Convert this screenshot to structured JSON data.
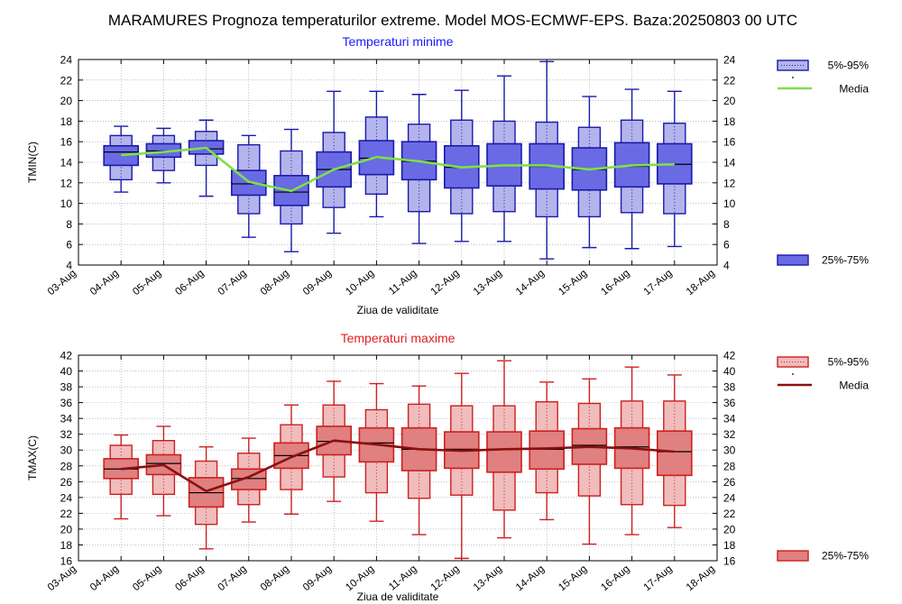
{
  "page_title": "MARAMURES  Prognoza temperaturilor extreme.  Model MOS-ECMWF-EPS. Baza:20250803 00 UTC",
  "chart_data": [
    {
      "type": "box",
      "title": "Temperaturi minime",
      "ylabel": "TMIN(C)",
      "xlabel": "Ziua de validitate",
      "x_ticks": [
        "03-Aug",
        "04-Aug",
        "05-Aug",
        "06-Aug",
        "07-Aug",
        "08-Aug",
        "09-Aug",
        "10-Aug",
        "11-Aug",
        "12-Aug",
        "13-Aug",
        "14-Aug",
        "15-Aug",
        "16-Aug",
        "17-Aug",
        "18-Aug"
      ],
      "ylim": [
        4,
        24
      ],
      "y_ticks": [
        4,
        6,
        8,
        10,
        12,
        14,
        16,
        18,
        20,
        22,
        24
      ],
      "grid": true,
      "colors": {
        "title": "#1a1aff",
        "band_5_95": "#b4b4ec",
        "band_25_75": "#6a6ae4",
        "stroke": "#1a1aaa",
        "mean_line": "#7ce04a"
      },
      "legend": {
        "outer": "5%-95%",
        "mean": "Media",
        "inner": "25%-75%"
      },
      "categories": [
        "04-Aug",
        "05-Aug",
        "06-Aug",
        "07-Aug",
        "08-Aug",
        "09-Aug",
        "10-Aug",
        "11-Aug",
        "12-Aug",
        "13-Aug",
        "14-Aug",
        "15-Aug",
        "16-Aug",
        "17-Aug"
      ],
      "boxes": [
        {
          "min": 11.1,
          "p5": 12.3,
          "p25": 13.7,
          "median": 15.0,
          "p75": 15.6,
          "p95": 16.6,
          "max": 17.5
        },
        {
          "min": 12.0,
          "p5": 13.2,
          "p25": 14.5,
          "median": 15.1,
          "p75": 15.8,
          "p95": 16.6,
          "max": 17.3
        },
        {
          "min": 10.7,
          "p5": 13.7,
          "p25": 14.8,
          "median": 15.3,
          "p75": 16.1,
          "p95": 17.0,
          "max": 18.1
        },
        {
          "min": 6.7,
          "p5": 9.0,
          "p25": 10.8,
          "median": 11.9,
          "p75": 13.2,
          "p95": 15.7,
          "max": 16.6
        },
        {
          "min": 5.3,
          "p5": 8.0,
          "p25": 9.8,
          "median": 11.1,
          "p75": 12.7,
          "p95": 15.1,
          "max": 17.2
        },
        {
          "min": 7.1,
          "p5": 9.6,
          "p25": 11.6,
          "median": 13.3,
          "p75": 15.0,
          "p95": 16.9,
          "max": 20.9
        },
        {
          "min": 8.7,
          "p5": 10.9,
          "p25": 12.8,
          "median": 14.4,
          "p75": 16.1,
          "p95": 18.4,
          "max": 20.9
        },
        {
          "min": 6.1,
          "p5": 9.2,
          "p25": 12.3,
          "median": 14.1,
          "p75": 16.0,
          "p95": 17.7,
          "max": 20.6
        },
        {
          "min": 6.3,
          "p5": 9.0,
          "p25": 11.5,
          "median": 13.5,
          "p75": 15.6,
          "p95": 18.1,
          "max": 21.0
        },
        {
          "min": 6.3,
          "p5": 9.2,
          "p25": 11.7,
          "median": 13.7,
          "p75": 15.8,
          "p95": 18.0,
          "max": 22.4
        },
        {
          "min": 4.6,
          "p5": 8.7,
          "p25": 11.4,
          "median": 13.6,
          "p75": 15.8,
          "p95": 17.9,
          "max": 23.8
        },
        {
          "min": 5.7,
          "p5": 8.7,
          "p25": 11.3,
          "median": 13.3,
          "p75": 15.4,
          "p95": 17.4,
          "max": 20.4
        },
        {
          "min": 5.6,
          "p5": 9.1,
          "p25": 11.6,
          "median": 13.6,
          "p75": 15.9,
          "p95": 18.1,
          "max": 21.1
        },
        {
          "min": 5.8,
          "p5": 9.0,
          "p25": 11.9,
          "median": 13.8,
          "p75": 15.8,
          "p95": 17.8,
          "max": 20.9
        }
      ],
      "mean": [
        14.7,
        15.0,
        15.4,
        12.1,
        11.2,
        13.3,
        14.5,
        14.1,
        13.5,
        13.7,
        13.7,
        13.3,
        13.7,
        13.8
      ]
    },
    {
      "type": "box",
      "title": "Temperaturi maxime",
      "ylabel": "TMAX(C)",
      "xlabel": "Ziua de validitate",
      "x_ticks": [
        "03-Aug",
        "04-Aug",
        "05-Aug",
        "06-Aug",
        "07-Aug",
        "08-Aug",
        "09-Aug",
        "10-Aug",
        "11-Aug",
        "12-Aug",
        "13-Aug",
        "14-Aug",
        "15-Aug",
        "16-Aug",
        "17-Aug",
        "18-Aug"
      ],
      "ylim": [
        16,
        42
      ],
      "y_ticks": [
        16,
        18,
        20,
        22,
        24,
        26,
        28,
        30,
        32,
        34,
        36,
        38,
        40,
        42
      ],
      "grid": true,
      "colors": {
        "title": "#e02020",
        "band_5_95": "#f0bcbc",
        "band_25_75": "#e08080",
        "stroke": "#cc2020",
        "mean_line": "#8b1010"
      },
      "legend": {
        "outer": "5%-95%",
        "mean": "Media",
        "inner": "25%-75%"
      },
      "categories": [
        "04-Aug",
        "05-Aug",
        "06-Aug",
        "07-Aug",
        "08-Aug",
        "09-Aug",
        "10-Aug",
        "11-Aug",
        "12-Aug",
        "13-Aug",
        "14-Aug",
        "15-Aug",
        "16-Aug",
        "17-Aug"
      ],
      "boxes": [
        {
          "min": 21.3,
          "p5": 24.4,
          "p25": 26.4,
          "median": 27.6,
          "p75": 28.9,
          "p95": 30.6,
          "max": 31.9
        },
        {
          "min": 21.7,
          "p5": 24.4,
          "p25": 26.9,
          "median": 28.3,
          "p75": 29.4,
          "p95": 31.2,
          "max": 33.0
        },
        {
          "min": 17.5,
          "p5": 20.6,
          "p25": 22.8,
          "median": 24.6,
          "p75": 26.5,
          "p95": 28.6,
          "max": 30.4
        },
        {
          "min": 20.9,
          "p5": 23.1,
          "p25": 25.0,
          "median": 26.4,
          "p75": 27.6,
          "p95": 29.6,
          "max": 31.5
        },
        {
          "min": 21.9,
          "p5": 25.0,
          "p25": 27.7,
          "median": 29.3,
          "p75": 30.9,
          "p95": 33.2,
          "max": 35.7
        },
        {
          "min": 23.5,
          "p5": 26.6,
          "p25": 29.4,
          "median": 31.1,
          "p75": 33.0,
          "p95": 35.7,
          "max": 38.7
        },
        {
          "min": 21.0,
          "p5": 24.6,
          "p25": 28.5,
          "median": 30.9,
          "p75": 32.8,
          "p95": 35.1,
          "max": 38.4
        },
        {
          "min": 19.3,
          "p5": 23.9,
          "p25": 27.4,
          "median": 30.1,
          "p75": 32.8,
          "p95": 35.8,
          "max": 38.1
        },
        {
          "min": 16.3,
          "p5": 24.3,
          "p25": 27.7,
          "median": 30.1,
          "p75": 32.3,
          "p95": 35.6,
          "max": 39.7
        },
        {
          "min": 18.9,
          "p5": 22.4,
          "p25": 27.2,
          "median": 30.1,
          "p75": 32.3,
          "p95": 35.6,
          "max": 41.3
        },
        {
          "min": 21.2,
          "p5": 24.6,
          "p25": 27.6,
          "median": 30.1,
          "p75": 32.4,
          "p95": 36.1,
          "max": 38.6
        },
        {
          "min": 18.1,
          "p5": 24.2,
          "p25": 28.2,
          "median": 30.6,
          "p75": 32.7,
          "p95": 35.9,
          "max": 39.0
        },
        {
          "min": 19.3,
          "p5": 23.1,
          "p25": 27.7,
          "median": 30.4,
          "p75": 32.8,
          "p95": 36.2,
          "max": 40.5
        },
        {
          "min": 20.2,
          "p5": 23.0,
          "p25": 26.8,
          "median": 29.8,
          "p75": 32.4,
          "p95": 36.2,
          "max": 39.5
        }
      ],
      "mean": [
        27.6,
        28.1,
        24.8,
        26.6,
        29.1,
        31.2,
        30.7,
        30.1,
        29.9,
        30.1,
        30.2,
        30.4,
        30.2,
        29.8
      ]
    }
  ]
}
